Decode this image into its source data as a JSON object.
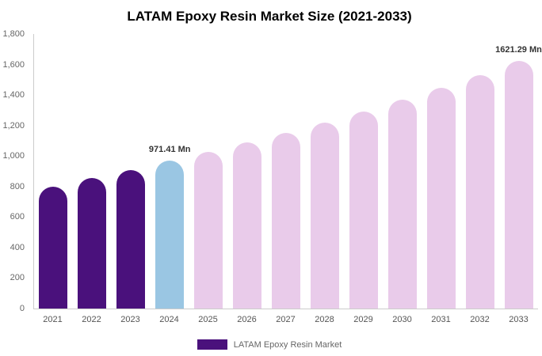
{
  "title": "LATAM Epoxy Resin Market Size (2021-2033)",
  "legend": {
    "label": "LATAM Epoxy Resin Market",
    "swatch_color": "#4A117C"
  },
  "colors": {
    "historical": "#4A117C",
    "current_year": "#9AC6E3",
    "forecast": "#E9CBEA",
    "axis_line": "#cccccc",
    "tick_text": "#666666",
    "data_label_text": "#333333"
  },
  "chart_data": {
    "type": "bar",
    "title": "LATAM Epoxy Resin Market Size (2021-2033)",
    "xlabel": "",
    "ylabel": "",
    "categories": [
      "2021",
      "2022",
      "2023",
      "2024",
      "2025",
      "2026",
      "2027",
      "2028",
      "2029",
      "2030",
      "2031",
      "2032",
      "2033"
    ],
    "values": [
      800,
      855,
      910,
      971.41,
      1028,
      1089,
      1152,
      1220,
      1291,
      1367,
      1447,
      1532,
      1621.29
    ],
    "bar_colors": [
      "#4A117C",
      "#4A117C",
      "#4A117C",
      "#9AC6E3",
      "#E9CBEA",
      "#E9CBEA",
      "#E9CBEA",
      "#E9CBEA",
      "#E9CBEA",
      "#E9CBEA",
      "#E9CBEA",
      "#E9CBEA",
      "#E9CBEA"
    ],
    "data_labels": {
      "2024": "971.41 Mn",
      "2033": "1621.29 Mn"
    },
    "ylim": [
      0,
      1800
    ],
    "yticks": [
      0,
      200,
      400,
      600,
      800,
      1000,
      1200,
      1400,
      1600,
      1800
    ],
    "ytick_labels": [
      "0",
      "200",
      "400",
      "600",
      "800",
      "1,000",
      "1,200",
      "1,400",
      "1,600",
      "1,800"
    ],
    "grid": false,
    "legend_position": "bottom",
    "legend_entries": [
      "LATAM Epoxy Resin Market"
    ]
  }
}
